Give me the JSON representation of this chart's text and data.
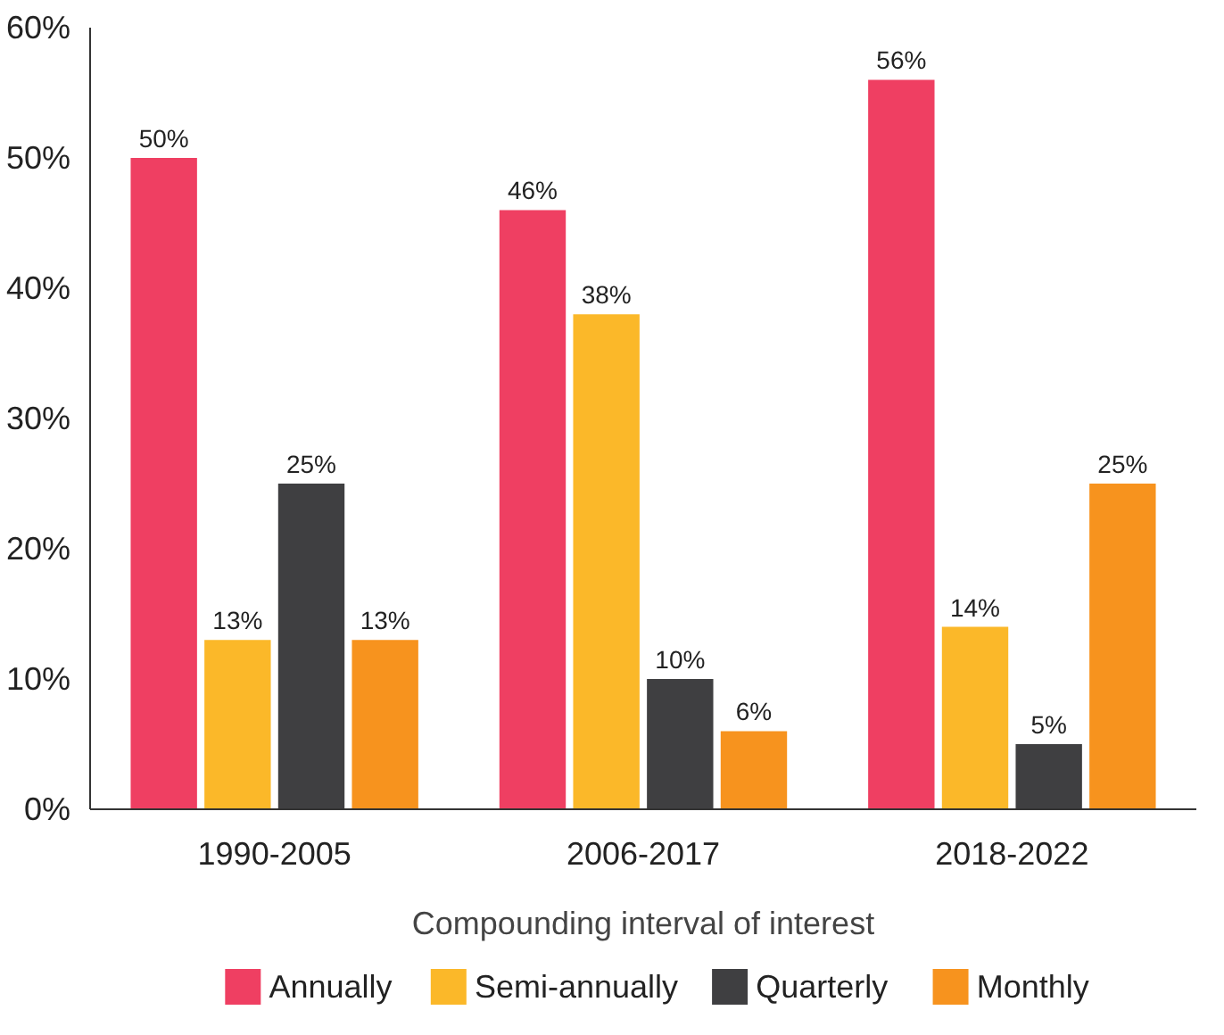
{
  "chart_data": {
    "type": "bar",
    "xlabel": "Compounding interval of interest",
    "categories": [
      "1990-2005",
      "2006-2017",
      "2018-2022"
    ],
    "series": [
      {
        "name": "Annually",
        "color": "#ef3f62",
        "values": [
          50,
          46,
          56
        ],
        "value_labels": [
          "50%",
          "46%",
          "56%"
        ]
      },
      {
        "name": "Semi-annually",
        "color": "#fbb829",
        "values": [
          13,
          38,
          14
        ],
        "value_labels": [
          "13%",
          "38%",
          "14%"
        ]
      },
      {
        "name": "Quarterly",
        "color": "#3f3f41",
        "values": [
          25,
          10,
          5
        ],
        "value_labels": [
          "25%",
          "10%",
          "5%"
        ]
      },
      {
        "name": "Monthly",
        "color": "#f7931e",
        "values": [
          13,
          6,
          25
        ],
        "value_labels": [
          "13%",
          "6%",
          "25%"
        ]
      }
    ],
    "ylim": [
      0,
      60
    ],
    "yticks": [
      {
        "value": 0,
        "label": "0%"
      },
      {
        "value": 10,
        "label": "10%"
      },
      {
        "value": 20,
        "label": "20%"
      },
      {
        "value": 30,
        "label": "30%"
      },
      {
        "value": 40,
        "label": "40%"
      },
      {
        "value": 50,
        "label": "50%"
      },
      {
        "value": 60,
        "label": "60%"
      }
    ],
    "grid": false,
    "legend": "bottom"
  }
}
